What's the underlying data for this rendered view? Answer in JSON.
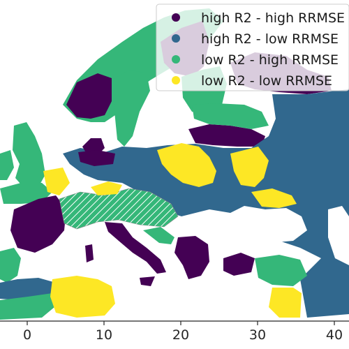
{
  "colors": {
    "high_r2_high_rrmse": "#440154",
    "high_r2_low_rrmse": "#31688e",
    "low_r2_high_rrmse": "#35b779",
    "low_r2_low_rrmse": "#fde725",
    "sea": "#ffffff",
    "axis": "#262626"
  },
  "legend": {
    "placement": "top-right",
    "items": [
      {
        "label": "high R2 - high RRMSE",
        "color": "#440154"
      },
      {
        "label": "high R2 - low RRMSE",
        "color": "#31688e"
      },
      {
        "label": "low R2 - high RRMSE",
        "color": "#35b779"
      },
      {
        "label": "low R2 - low RRMSE",
        "color": "#fde725"
      }
    ]
  },
  "x_axis": {
    "ticks": [
      "0",
      "10",
      "20",
      "30",
      "40"
    ]
  },
  "map": {
    "hatched_region_pattern": "white diagonal hatch over low R2 - high RRMSE"
  }
}
